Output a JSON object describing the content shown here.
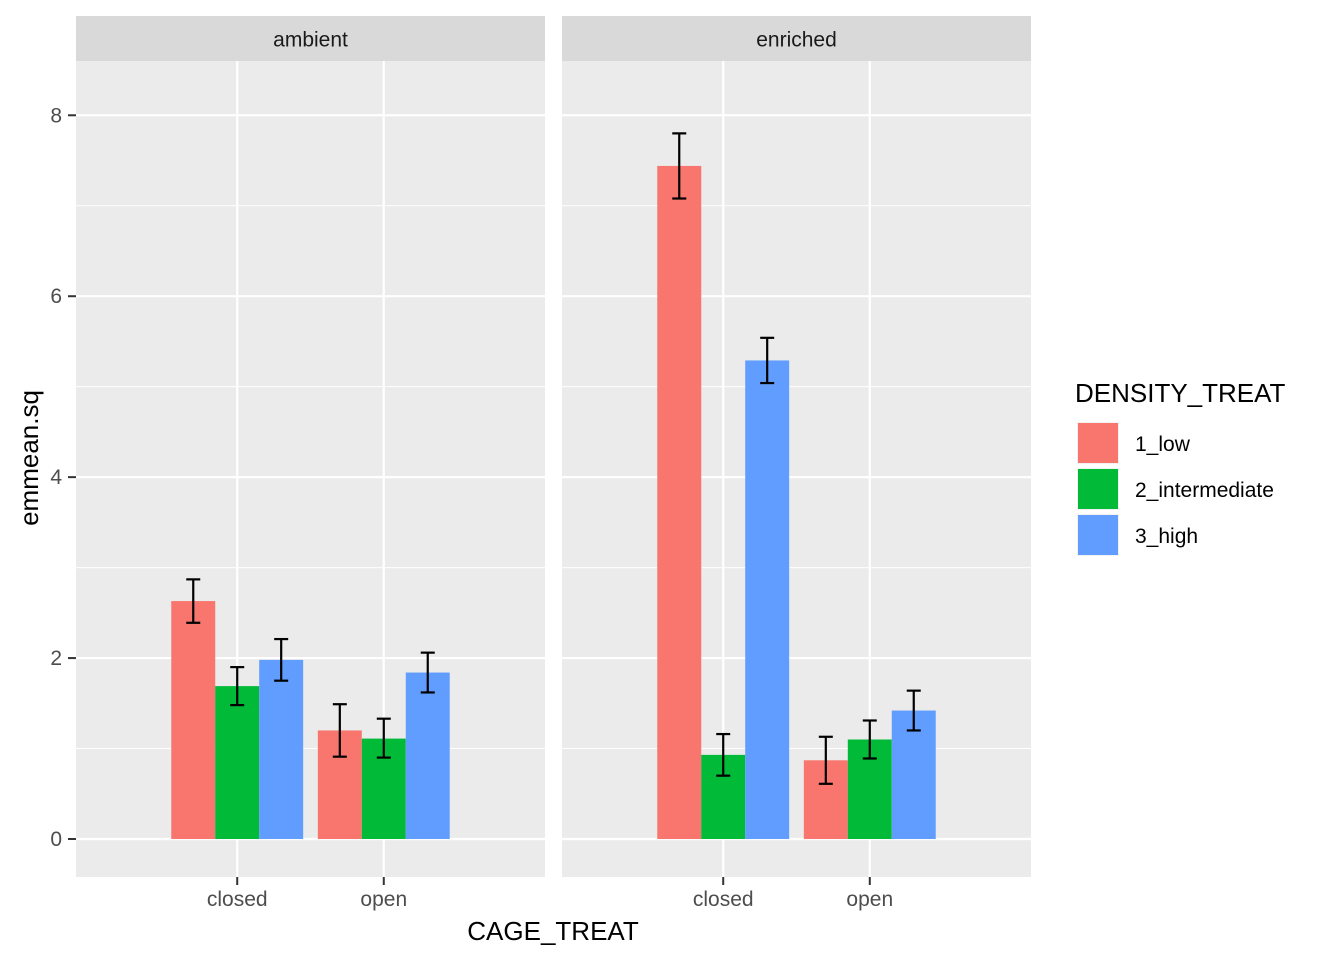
{
  "chart_data": {
    "type": "bar",
    "xlabel": "CAGE_TREAT",
    "ylabel": "emmean.sq",
    "ylim": [
      -0.42,
      8.6
    ],
    "yticks": [
      "0",
      "2",
      "4",
      "6",
      "8"
    ],
    "ytick_values": [
      0,
      2,
      4,
      6,
      8
    ],
    "categories": [
      "closed",
      "open"
    ],
    "grid": true,
    "legend_position": "right",
    "legend": {
      "title": "DENSITY_TREAT",
      "entries": [
        "1_low",
        "2_intermediate",
        "3_high"
      ]
    },
    "colors": [
      "#F8766D",
      "#00BA38",
      "#619CFF"
    ],
    "facets": [
      {
        "label": "ambient",
        "series": [
          {
            "name": "1_low",
            "values": [
              2.63,
              1.2
            ],
            "err_low": [
              2.39,
              0.91
            ],
            "err_high": [
              2.87,
              1.49
            ]
          },
          {
            "name": "2_intermediate",
            "values": [
              1.69,
              1.11
            ],
            "err_low": [
              1.48,
              0.9
            ],
            "err_high": [
              1.9,
              1.33
            ]
          },
          {
            "name": "3_high",
            "values": [
              1.98,
              1.84
            ],
            "err_low": [
              1.75,
              1.62
            ],
            "err_high": [
              2.21,
              2.06
            ]
          }
        ]
      },
      {
        "label": "enriched",
        "series": [
          {
            "name": "1_low",
            "values": [
              7.44,
              0.87
            ],
            "err_low": [
              7.08,
              0.61
            ],
            "err_high": [
              7.8,
              1.13
            ]
          },
          {
            "name": "2_intermediate",
            "values": [
              0.93,
              1.1
            ],
            "err_low": [
              0.7,
              0.89
            ],
            "err_high": [
              1.16,
              1.31
            ]
          },
          {
            "name": "3_high",
            "values": [
              5.29,
              1.42
            ],
            "err_low": [
              5.04,
              1.2
            ],
            "err_high": [
              5.54,
              1.64
            ]
          }
        ]
      }
    ]
  }
}
